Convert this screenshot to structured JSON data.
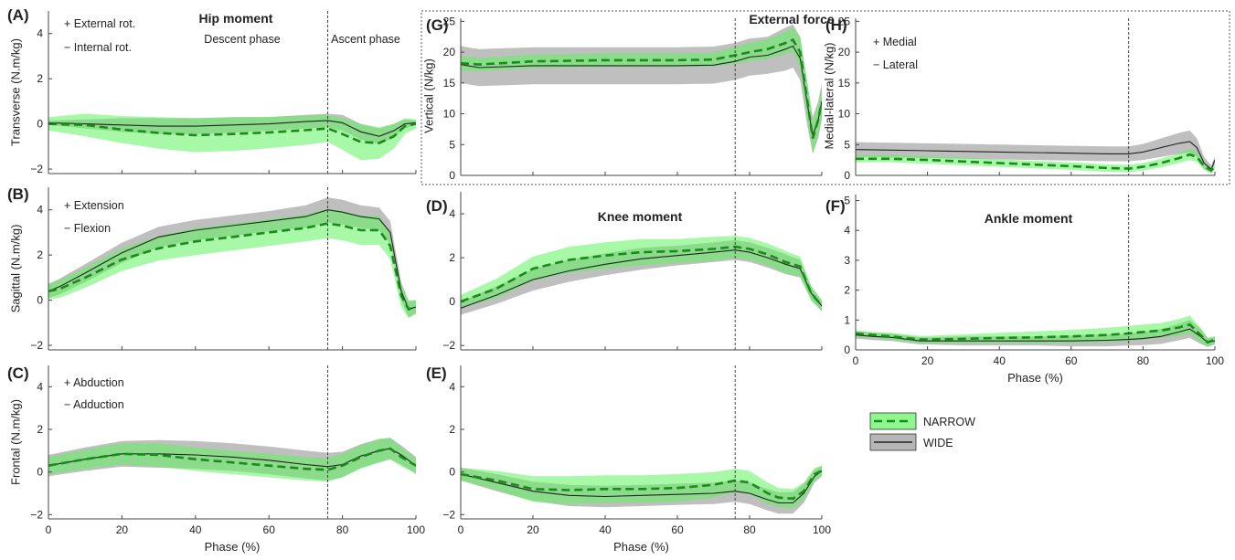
{
  "legend": {
    "items": [
      {
        "name": "NARROW",
        "line_color": "#1a8a1a",
        "band_color": "#5ef35e",
        "style": "dashed"
      },
      {
        "name": "WIDE",
        "line_color": "#222222",
        "band_color": "#a9a9a9",
        "style": "solid"
      }
    ]
  },
  "chart_data": [
    {
      "panel": "(A)",
      "type": "line",
      "title": "Hip moment",
      "ylabel": "Transverse (N.m/kg)",
      "xlabel": "",
      "xlim": [
        0,
        100
      ],
      "ylim": [
        -2.2,
        5.0
      ],
      "yticks": [
        "4",
        "2",
        "0",
        "−2"
      ],
      "xticks": [],
      "annotations": [
        "+ External rot.",
        "− Internal rot.",
        "Descent phase",
        "Ascent phase"
      ],
      "phase_line": 76,
      "x": [
        0,
        10,
        20,
        30,
        40,
        50,
        60,
        70,
        76,
        80,
        85,
        90,
        94,
        97,
        100
      ],
      "series": [
        {
          "name": "NARROW",
          "values": [
            0.0,
            -0.05,
            -0.25,
            -0.4,
            -0.5,
            -0.45,
            -0.38,
            -0.28,
            -0.2,
            -0.45,
            -0.8,
            -0.85,
            -0.55,
            -0.1,
            0.0
          ],
          "band": [
            0.3,
            0.5,
            0.6,
            0.7,
            0.75,
            0.75,
            0.7,
            0.65,
            0.6,
            0.7,
            0.8,
            0.7,
            0.55,
            0.35,
            0.2
          ]
        },
        {
          "name": "WIDE",
          "values": [
            0.05,
            0.0,
            -0.05,
            -0.1,
            -0.1,
            -0.05,
            0.0,
            0.1,
            0.15,
            0.05,
            -0.35,
            -0.55,
            -0.3,
            0.0,
            0.05
          ],
          "band": [
            0.1,
            0.2,
            0.3,
            0.35,
            0.35,
            0.35,
            0.3,
            0.3,
            0.3,
            0.35,
            0.35,
            0.35,
            0.3,
            0.2,
            0.1
          ]
        }
      ]
    },
    {
      "panel": "(B)",
      "type": "line",
      "title": "",
      "ylabel": "Sagittal (N.m/kg)",
      "xlabel": "",
      "xlim": [
        0,
        100
      ],
      "ylim": [
        -2.2,
        5.0
      ],
      "yticks": [
        "4",
        "2",
        "0",
        "−2"
      ],
      "xticks": [],
      "annotations": [
        "+ Extension",
        "− Flexion"
      ],
      "phase_line": 76,
      "x": [
        0,
        3,
        10,
        20,
        30,
        40,
        50,
        60,
        70,
        76,
        80,
        85,
        90,
        93,
        96,
        98,
        100
      ],
      "series": [
        {
          "name": "NARROW",
          "values": [
            0.4,
            0.5,
            1.0,
            1.8,
            2.3,
            2.6,
            2.8,
            3.0,
            3.2,
            3.4,
            3.3,
            3.1,
            3.1,
            2.4,
            0.2,
            -0.4,
            -0.3
          ],
          "band": [
            0.35,
            0.4,
            0.45,
            0.5,
            0.55,
            0.6,
            0.6,
            0.6,
            0.6,
            0.65,
            0.65,
            0.65,
            0.65,
            0.6,
            0.5,
            0.4,
            0.3
          ]
        },
        {
          "name": "WIDE",
          "values": [
            0.4,
            0.6,
            1.2,
            2.1,
            2.8,
            3.1,
            3.3,
            3.5,
            3.7,
            4.0,
            3.9,
            3.7,
            3.6,
            3.0,
            0.4,
            -0.4,
            -0.3
          ],
          "band": [
            0.3,
            0.35,
            0.4,
            0.45,
            0.45,
            0.45,
            0.45,
            0.45,
            0.5,
            0.55,
            0.55,
            0.5,
            0.5,
            0.5,
            0.4,
            0.35,
            0.3
          ]
        }
      ]
    },
    {
      "panel": "(C)",
      "type": "line",
      "title": "",
      "ylabel": "Frontal (N.m/kg)",
      "xlabel": "Phase (%)",
      "xlim": [
        0,
        100
      ],
      "ylim": [
        -2.2,
        5.0
      ],
      "yticks": [
        "4",
        "2",
        "0",
        "−2"
      ],
      "xticks": [
        "0",
        "20",
        "40",
        "60",
        "80",
        "100"
      ],
      "annotations": [
        "+ Abduction",
        "− Adduction"
      ],
      "phase_line": 76,
      "x": [
        0,
        10,
        20,
        30,
        40,
        50,
        60,
        70,
        76,
        80,
        85,
        90,
        93,
        96,
        100
      ],
      "series": [
        {
          "name": "NARROW",
          "values": [
            0.3,
            0.6,
            0.85,
            0.8,
            0.6,
            0.45,
            0.3,
            0.15,
            0.1,
            0.3,
            0.7,
            1.0,
            1.1,
            0.7,
            0.3
          ],
          "band": [
            0.4,
            0.45,
            0.5,
            0.55,
            0.55,
            0.55,
            0.55,
            0.55,
            0.55,
            0.55,
            0.55,
            0.55,
            0.5,
            0.45,
            0.35
          ]
        },
        {
          "name": "WIDE",
          "values": [
            0.3,
            0.6,
            0.85,
            0.85,
            0.8,
            0.7,
            0.55,
            0.35,
            0.25,
            0.35,
            0.75,
            1.0,
            1.1,
            0.8,
            0.3
          ],
          "band": [
            0.5,
            0.55,
            0.6,
            0.65,
            0.65,
            0.65,
            0.65,
            0.65,
            0.65,
            0.6,
            0.55,
            0.55,
            0.5,
            0.45,
            0.4
          ]
        }
      ]
    },
    {
      "panel": "(D)",
      "type": "line",
      "title": "Knee moment",
      "ylabel": "",
      "xlabel": "",
      "xlim": [
        0,
        100
      ],
      "ylim": [
        -2.2,
        5.0
      ],
      "yticks": [
        "4",
        "2",
        "0",
        "−2"
      ],
      "xticks": [],
      "annotations": [],
      "phase_line": 76,
      "x": [
        0,
        10,
        20,
        30,
        40,
        50,
        60,
        70,
        76,
        80,
        85,
        90,
        94,
        97,
        100
      ],
      "series": [
        {
          "name": "NARROW",
          "values": [
            0.0,
            0.6,
            1.5,
            1.9,
            2.1,
            2.25,
            2.3,
            2.4,
            2.5,
            2.4,
            2.15,
            1.8,
            1.6,
            0.4,
            -0.2
          ],
          "band": [
            0.3,
            0.45,
            0.55,
            0.6,
            0.6,
            0.6,
            0.55,
            0.55,
            0.5,
            0.5,
            0.5,
            0.5,
            0.45,
            0.35,
            0.25
          ]
        },
        {
          "name": "WIDE",
          "values": [
            -0.3,
            0.3,
            1.0,
            1.4,
            1.7,
            1.95,
            2.1,
            2.25,
            2.35,
            2.25,
            2.0,
            1.7,
            1.5,
            0.4,
            -0.2
          ],
          "band": [
            0.3,
            0.4,
            0.5,
            0.5,
            0.5,
            0.5,
            0.45,
            0.45,
            0.45,
            0.45,
            0.45,
            0.45,
            0.4,
            0.3,
            0.25
          ]
        }
      ]
    },
    {
      "panel": "(E)",
      "type": "line",
      "title": "",
      "ylabel": "",
      "xlabel": "Phase (%)",
      "xlim": [
        0,
        100
      ],
      "ylim": [
        -2.2,
        5.0
      ],
      "yticks": [
        "4",
        "2",
        "0",
        "−2"
      ],
      "xticks": [
        "0",
        "20",
        "40",
        "60",
        "80",
        "100"
      ],
      "annotations": [],
      "phase_line": 76,
      "x": [
        0,
        10,
        20,
        30,
        40,
        50,
        60,
        70,
        76,
        80,
        85,
        88,
        92,
        95,
        98,
        100
      ],
      "series": [
        {
          "name": "NARROW",
          "values": [
            -0.1,
            -0.4,
            -0.8,
            -0.85,
            -0.8,
            -0.8,
            -0.75,
            -0.6,
            -0.4,
            -0.5,
            -1.0,
            -1.2,
            -1.25,
            -0.9,
            -0.1,
            0.05
          ],
          "band": [
            0.3,
            0.45,
            0.6,
            0.65,
            0.65,
            0.65,
            0.65,
            0.6,
            0.55,
            0.55,
            0.5,
            0.45,
            0.45,
            0.4,
            0.3,
            0.25
          ]
        },
        {
          "name": "WIDE",
          "values": [
            -0.1,
            -0.5,
            -0.9,
            -1.1,
            -1.15,
            -1.1,
            -1.05,
            -1.0,
            -0.9,
            -1.0,
            -1.3,
            -1.45,
            -1.45,
            -1.0,
            -0.2,
            0.05
          ],
          "band": [
            0.3,
            0.4,
            0.45,
            0.5,
            0.5,
            0.5,
            0.5,
            0.5,
            0.5,
            0.5,
            0.5,
            0.5,
            0.5,
            0.45,
            0.3,
            0.25
          ]
        }
      ]
    },
    {
      "panel": "(G)",
      "type": "line",
      "title": "External force",
      "ylabel": "Vertical (N/kg)",
      "xlabel": "",
      "xlim": [
        0,
        100
      ],
      "ylim": [
        0,
        25.5
      ],
      "yticks": [
        "25",
        "20",
        "15",
        "10",
        "5",
        "0"
      ],
      "xticks": [],
      "annotations": [],
      "phase_line": 76,
      "x": [
        0,
        5,
        20,
        40,
        60,
        70,
        76,
        80,
        85,
        90,
        92,
        94,
        96,
        97.5,
        99,
        100
      ],
      "series": [
        {
          "name": "NARROW",
          "values": [
            18.2,
            18.0,
            18.5,
            18.7,
            18.7,
            18.8,
            19.5,
            20.0,
            20.5,
            21.5,
            22.0,
            20.0,
            12.0,
            6.0,
            9.0,
            12.0
          ],
          "band": [
            1.2,
            1.1,
            1.1,
            1.1,
            1.1,
            1.1,
            1.4,
            1.5,
            1.6,
            1.8,
            2.0,
            2.5,
            3.0,
            2.5,
            2.5,
            2.5
          ]
        },
        {
          "name": "WIDE",
          "values": [
            18.0,
            17.5,
            17.8,
            17.8,
            17.8,
            17.9,
            18.5,
            19.2,
            19.5,
            20.5,
            21.0,
            19.0,
            11.5,
            6.5,
            9.0,
            12.0
          ],
          "band": [
            3.0,
            3.0,
            3.0,
            3.0,
            3.0,
            3.0,
            3.0,
            3.0,
            3.0,
            3.5,
            3.5,
            3.5,
            3.5,
            3.0,
            3.0,
            3.0
          ]
        }
      ]
    },
    {
      "panel": "(H)",
      "type": "line",
      "title": "",
      "ylabel": "Medial-lateral (N/kg)",
      "xlabel": "",
      "xlim": [
        0,
        100
      ],
      "ylim": [
        0,
        25.5
      ],
      "yticks": [
        "25",
        "20",
        "15",
        "10",
        "5",
        "0"
      ],
      "xticks": [],
      "annotations": [
        "+ Medial",
        "− Lateral"
      ],
      "phase_line": 76,
      "x": [
        0,
        10,
        20,
        40,
        60,
        70,
        76,
        80,
        85,
        90,
        93,
        95,
        97,
        99,
        100
      ],
      "series": [
        {
          "name": "NARROW",
          "values": [
            2.7,
            2.7,
            2.5,
            2.0,
            1.5,
            1.2,
            1.1,
            1.4,
            2.0,
            2.8,
            3.4,
            3.0,
            1.5,
            0.8,
            1.5
          ],
          "band": [
            0.6,
            0.6,
            0.6,
            0.6,
            0.6,
            0.6,
            0.6,
            0.6,
            0.7,
            0.8,
            0.9,
            0.8,
            0.6,
            0.5,
            0.5
          ]
        },
        {
          "name": "WIDE",
          "values": [
            4.2,
            4.1,
            4.0,
            3.8,
            3.6,
            3.5,
            3.5,
            3.8,
            4.5,
            5.2,
            5.5,
            4.5,
            2.0,
            1.0,
            2.5
          ],
          "band": [
            1.2,
            1.2,
            1.2,
            1.2,
            1.2,
            1.2,
            1.2,
            1.3,
            1.5,
            1.7,
            1.8,
            1.5,
            1.0,
            0.6,
            0.6
          ]
        }
      ]
    },
    {
      "panel": "(F)",
      "type": "line",
      "title": "Ankle moment",
      "ylabel": "",
      "xlabel": "Phase (%)",
      "xlim": [
        0,
        100
      ],
      "ylim": [
        0,
        5.2
      ],
      "yticks": [
        "5",
        "4",
        "3",
        "2",
        "1",
        "0"
      ],
      "xticks": [
        "0",
        "20",
        "40",
        "60",
        "80",
        "100"
      ],
      "annotations": [],
      "phase_line": 76,
      "x": [
        0,
        5,
        10,
        18,
        20,
        30,
        40,
        50,
        60,
        70,
        76,
        80,
        85,
        90,
        93,
        96,
        98,
        100
      ],
      "series": [
        {
          "name": "NARROW",
          "values": [
            0.55,
            0.5,
            0.45,
            0.35,
            0.35,
            0.37,
            0.4,
            0.42,
            0.45,
            0.5,
            0.55,
            0.6,
            0.65,
            0.75,
            0.85,
            0.5,
            0.25,
            0.35
          ],
          "band": [
            0.1,
            0.1,
            0.12,
            0.12,
            0.12,
            0.15,
            0.17,
            0.2,
            0.22,
            0.24,
            0.25,
            0.25,
            0.25,
            0.28,
            0.3,
            0.25,
            0.15,
            0.12
          ]
        },
        {
          "name": "WIDE",
          "values": [
            0.5,
            0.45,
            0.42,
            0.3,
            0.3,
            0.3,
            0.3,
            0.3,
            0.3,
            0.32,
            0.35,
            0.38,
            0.45,
            0.6,
            0.7,
            0.45,
            0.25,
            0.3
          ],
          "band": [
            0.12,
            0.12,
            0.12,
            0.12,
            0.12,
            0.15,
            0.15,
            0.15,
            0.18,
            0.2,
            0.2,
            0.22,
            0.25,
            0.28,
            0.3,
            0.25,
            0.15,
            0.12
          ]
        }
      ]
    }
  ]
}
